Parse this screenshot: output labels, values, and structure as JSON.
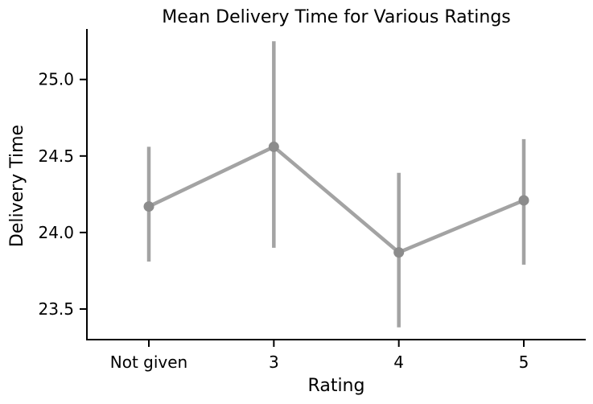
{
  "chart_data": {
    "type": "line",
    "title": "Mean Delivery Time for Various Ratings",
    "xlabel": "Rating",
    "ylabel": "Delivery Time",
    "categories": [
      "Not given",
      "3",
      "4",
      "5"
    ],
    "series": [
      {
        "values": [
          24.17,
          24.56,
          23.87,
          24.21
        ],
        "error_low": [
          23.81,
          23.9,
          23.38,
          23.79
        ],
        "error_high": [
          24.56,
          25.25,
          24.39,
          24.61
        ]
      }
    ],
    "ylim": [
      23.3,
      25.33
    ],
    "yticks": [
      23.5,
      24.0,
      24.5,
      25.0
    ],
    "ytick_labels": [
      "23.5",
      "24.0",
      "24.5",
      "25.0"
    ],
    "grid": false,
    "colors": {
      "series": "#a3a3a3",
      "marker": "#8c8c8c",
      "axis": "#000000"
    }
  }
}
